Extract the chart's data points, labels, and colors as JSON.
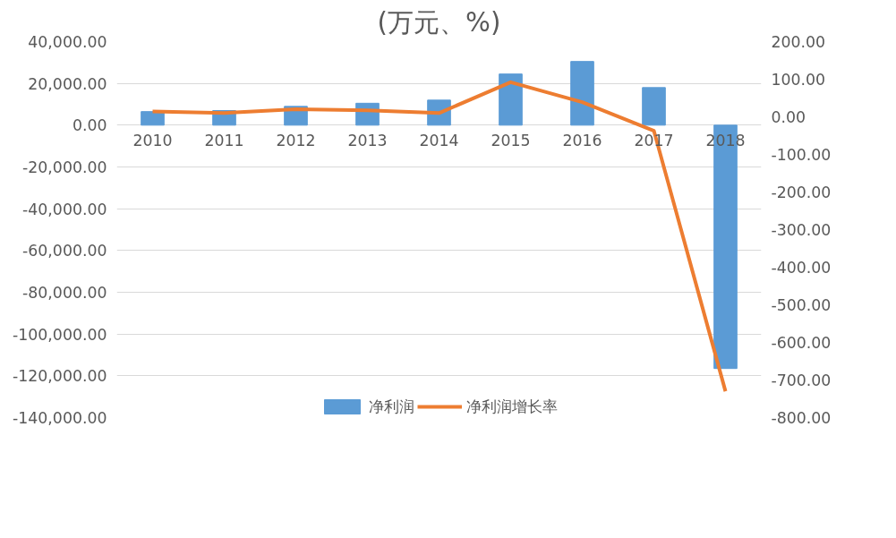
{
  "chart_data": {
    "type": "bar",
    "title": "(万元、%)",
    "categories": [
      "2010",
      "2011",
      "2012",
      "2013",
      "2014",
      "2015",
      "2016",
      "2017",
      "2018"
    ],
    "series": [
      {
        "name": "净利润",
        "color": "#5b9bd5",
        "values": [
          6500,
          7000,
          9000,
          10500,
          12000,
          24500,
          30500,
          18000,
          -116500
        ]
      },
      {
        "name": "净利润增长率",
        "type": "line",
        "axis": "y2",
        "color": "#ed7d31",
        "values": [
          14,
          10,
          20,
          17,
          10,
          92,
          39,
          -37,
          -730
        ]
      }
    ],
    "ylim": [
      -140000,
      40000
    ],
    "yticks": [
      {
        "value": -140000,
        "label": "-140,000.00"
      },
      {
        "value": -120000,
        "label": "-120,000.00"
      },
      {
        "value": -100000,
        "label": "-100,000.00"
      },
      {
        "value": -80000,
        "label": "-80,000.00"
      },
      {
        "value": -60000,
        "label": "-60,000.00"
      },
      {
        "value": -40000,
        "label": "-40,000.00"
      },
      {
        "value": -20000,
        "label": "-20,000.00"
      },
      {
        "value": 0,
        "label": "0.00"
      },
      {
        "value": 20000,
        "label": "20,000.00"
      },
      {
        "value": 40000,
        "label": "40,000.00"
      }
    ],
    "y2lim": [
      -800,
      200
    ],
    "y2ticks": [
      {
        "value": -800,
        "label": "-800.00"
      },
      {
        "value": -700,
        "label": "-700.00"
      },
      {
        "value": -600,
        "label": "-600.00"
      },
      {
        "value": -500,
        "label": "-500.00"
      },
      {
        "value": -400,
        "label": "-400.00"
      },
      {
        "value": -300,
        "label": "-300.00"
      },
      {
        "value": -200,
        "label": "-200.00"
      },
      {
        "value": -100,
        "label": "-100.00"
      },
      {
        "value": 0,
        "label": "0.00"
      },
      {
        "value": 100,
        "label": "100.00"
      },
      {
        "value": 200,
        "label": "200.00"
      }
    ],
    "grid": "y",
    "legend": "bottom",
    "marker": "none",
    "line_style": "solid"
  }
}
